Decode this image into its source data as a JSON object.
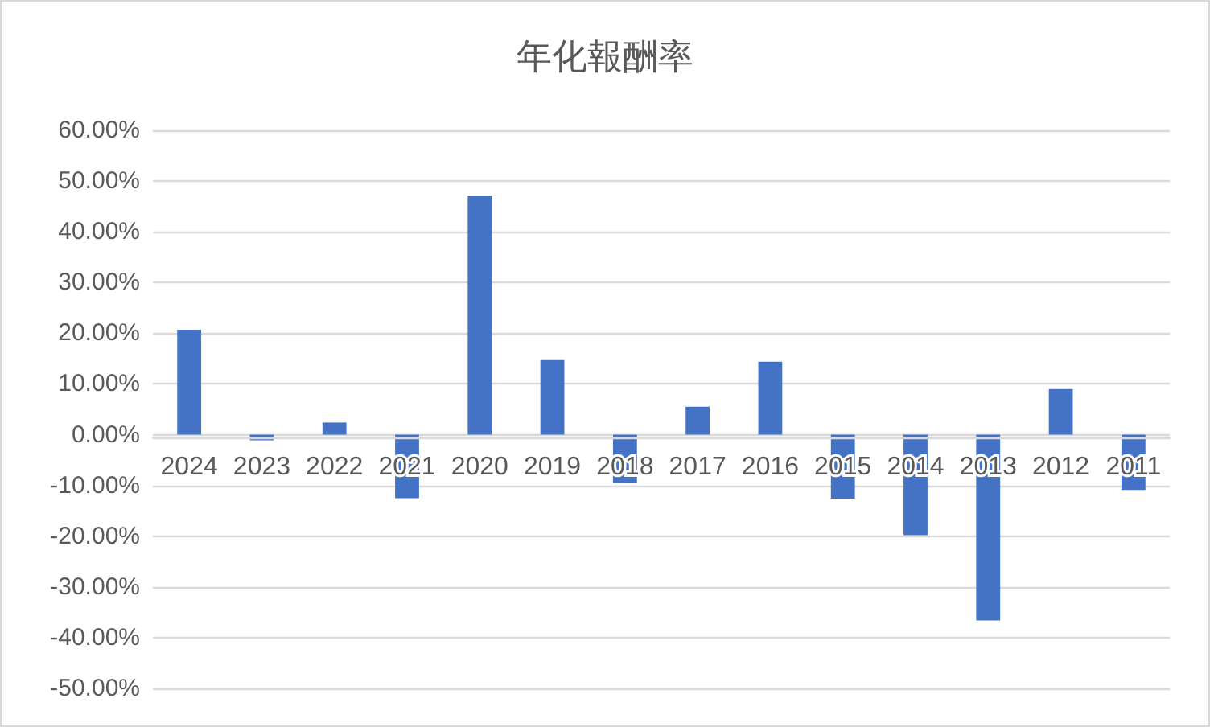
{
  "chart_data": {
    "type": "bar",
    "title": "年化報酬率",
    "categories": [
      "2024",
      "2023",
      "2022",
      "2021",
      "2020",
      "2019",
      "2018",
      "2017",
      "2016",
      "2015",
      "2014",
      "2013",
      "2012",
      "2011"
    ],
    "values": [
      20.7,
      -1.1,
      2.4,
      -12.5,
      47.0,
      14.7,
      -9.5,
      5.5,
      14.4,
      -12.6,
      -19.8,
      -36.6,
      9.0,
      -10.9
    ],
    "color": "#4472c4",
    "ylim": [
      -50,
      60
    ],
    "yticks": [
      {
        "value": -50,
        "label": "-50.00%"
      },
      {
        "value": -40,
        "label": "-40.00%"
      },
      {
        "value": -30,
        "label": "-30.00%"
      },
      {
        "value": -20,
        "label": "-20.00%"
      },
      {
        "value": -10,
        "label": "-10.00%"
      },
      {
        "value": 0,
        "label": "0.00%"
      },
      {
        "value": 10,
        "label": "10.00%"
      },
      {
        "value": 20,
        "label": "20.00%"
      },
      {
        "value": 30,
        "label": "30.00%"
      },
      {
        "value": 40,
        "label": "40.00%"
      },
      {
        "value": 50,
        "label": "50.00%"
      },
      {
        "value": 60,
        "label": "60.00%"
      }
    ],
    "grid": "y"
  }
}
